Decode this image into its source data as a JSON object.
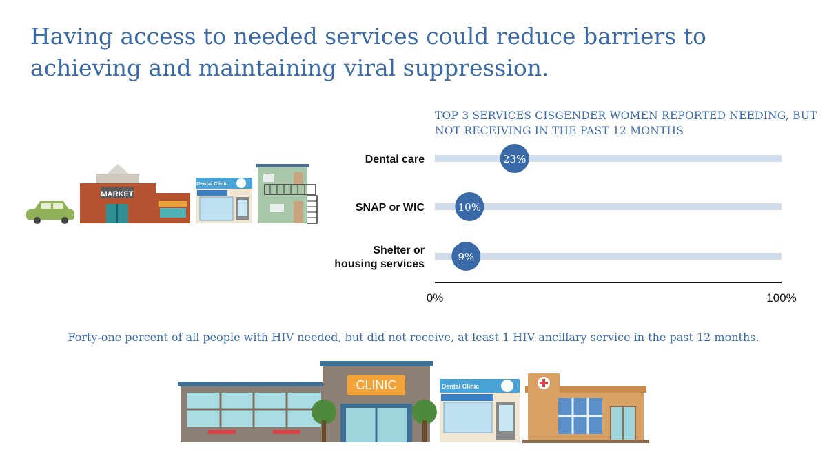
{
  "title": "Having access to needed services could reduce barriers to achieving and maintaining viral suppression.",
  "footnote": "Forty-one percent of all people with HIV needed, but did not receive, at least 1 HIV ancillary service in the past 12 months.",
  "illustration_labels": {
    "market": "MARKET",
    "dental_clinic": "Dental Clinic",
    "clinic": "CLINIC"
  },
  "colors": {
    "accent": "#3a6aa8",
    "track": "#cfdcec",
    "marker": "#3a6aa8",
    "axis": "#111111"
  },
  "chart_data": {
    "type": "bar",
    "title": "TOP 3 SERVICES CISGENDER WOMEN REPORTED NEEDING, BUT NOT RECEIVING IN THE PAST 12 MONTHS",
    "categories": [
      [
        "Dental care"
      ],
      [
        "SNAP or WIC"
      ],
      [
        "Shelter or",
        "housing services"
      ]
    ],
    "values": [
      23,
      10,
      9
    ],
    "value_labels": [
      "23%",
      "10%",
      "9%"
    ],
    "xlim": [
      0,
      100
    ],
    "x_tick_labels": [
      "0%",
      "100%"
    ],
    "unit": "%"
  }
}
